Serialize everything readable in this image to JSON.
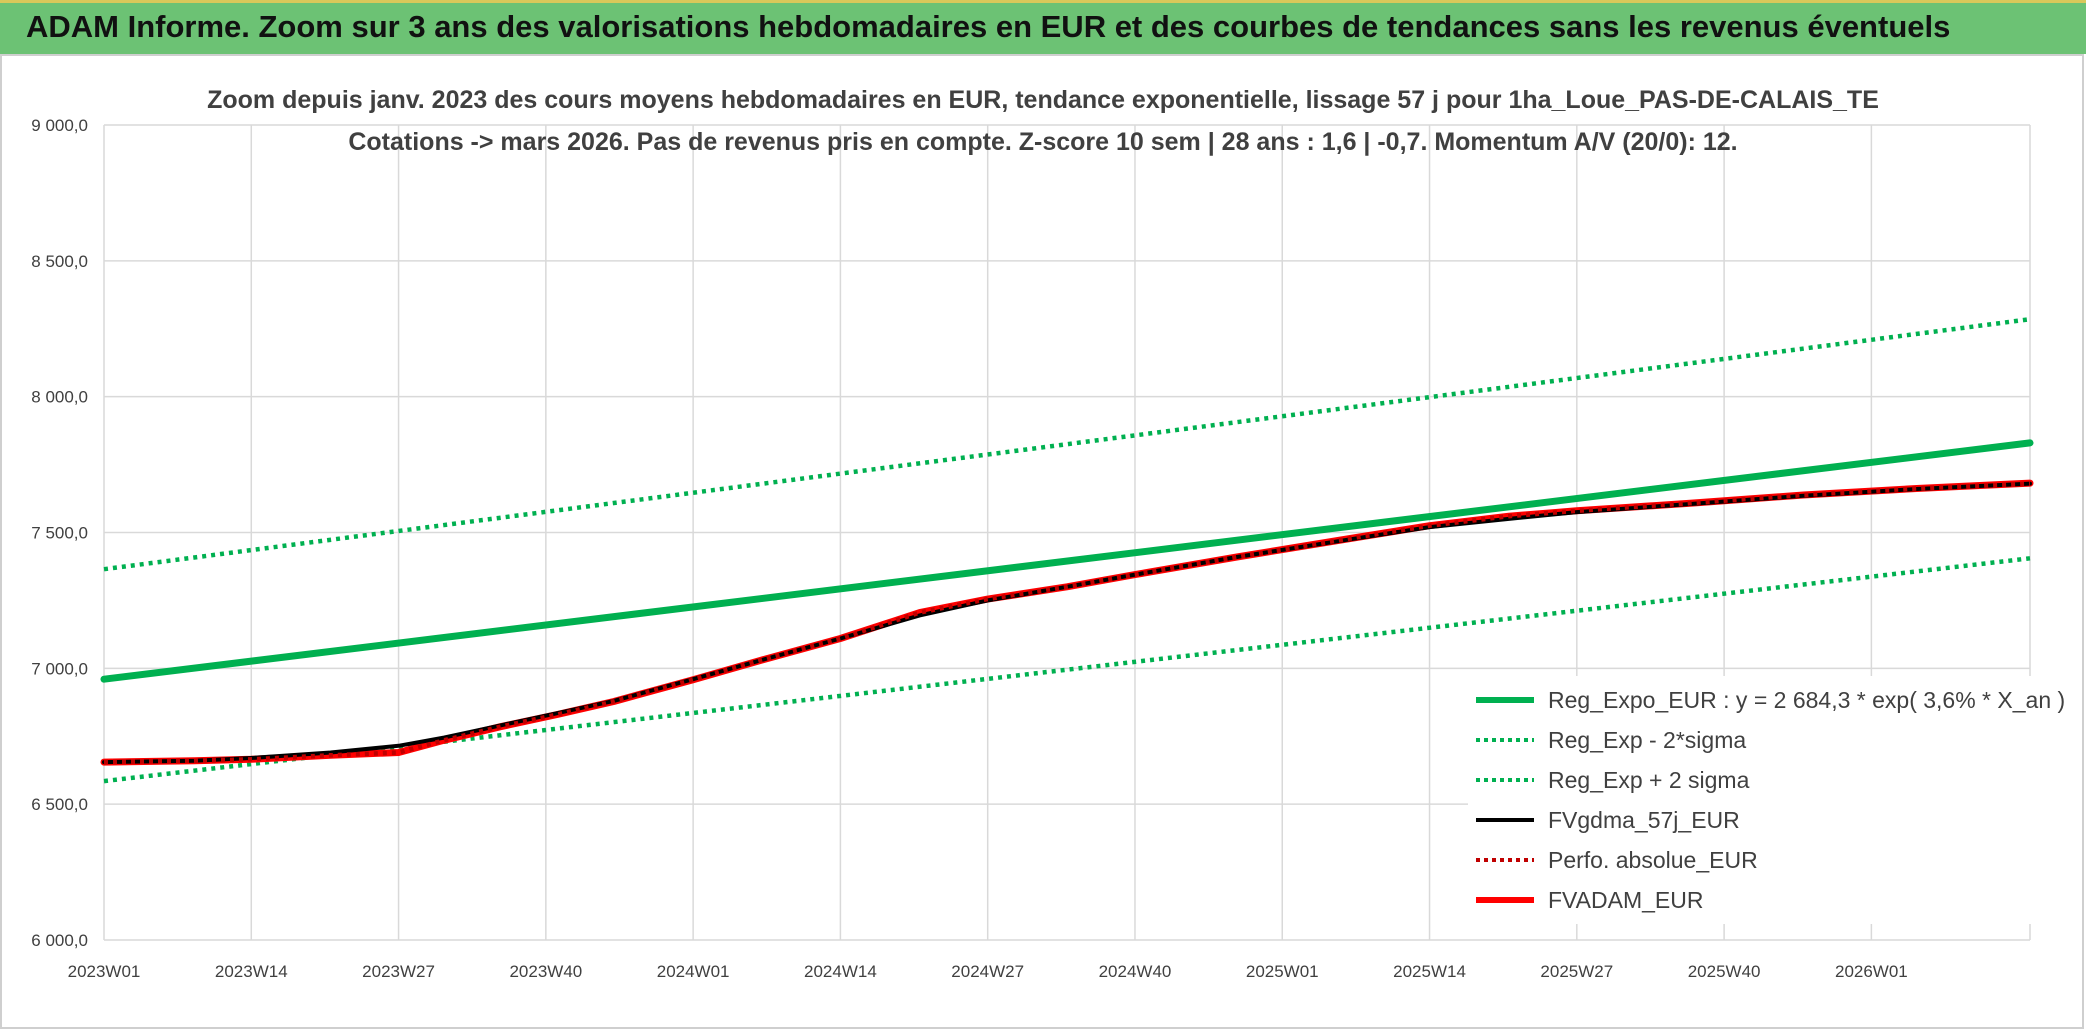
{
  "header": {
    "title": "ADAM Informe. Zoom sur 3 ans des valorisations hebdomadaires en EUR et des courbes de tendances sans les revenus éventuels"
  },
  "chart_data": {
    "type": "line",
    "title": "Zoom depuis janv. 2023 des cours moyens hebdomadaires en EUR, tendance exponentielle, lissage 57 j pour 1ha_Loue_PAS-DE-CALAIS_TE",
    "subtitle": "Cotations -> mars 2026. Pas de revenus pris en compte. Z-score 10 sem | 28 ans : 1,6 | -0,7. Momentum A/V (20/0): 12.",
    "xlabel": "",
    "ylabel": "",
    "ylim": [
      6000,
      9000
    ],
    "y_ticks": [
      "6 000,0",
      "6 500,0",
      "7 000,0",
      "7 500,0",
      "8 000,0",
      "8 500,0",
      "9 000,0"
    ],
    "x_ticks": [
      "2023W01",
      "2023W14",
      "2023W27",
      "2023W40",
      "2024W01",
      "2024W14",
      "2024W27",
      "2024W40",
      "2025W01",
      "2025W14",
      "2025W27",
      "2025W40",
      "2026W01"
    ],
    "x_range_weeks": [
      0,
      170
    ],
    "grid": true,
    "legend_position": "bottom-right",
    "series": [
      {
        "name": "Reg_Expo_EUR : y = 2 684,3 * exp( 3,6% *  X_an )",
        "color": "#00b050",
        "style": "solid-thick",
        "x": [
          0,
          170
        ],
        "values": [
          6960,
          7830
        ]
      },
      {
        "name": "Reg_Exp - 2*sigma",
        "color": "#00b050",
        "style": "dotted",
        "x": [
          0,
          170
        ],
        "values": [
          6585,
          7405
        ]
      },
      {
        "name": "Reg_Exp + 2 sigma",
        "color": "#00b050",
        "style": "dotted",
        "x": [
          0,
          170
        ],
        "values": [
          7365,
          8285
        ]
      },
      {
        "name": "FVgdma_57j_EUR",
        "color": "#000000",
        "style": "solid",
        "x": [
          0,
          8,
          13,
          20,
          26,
          30,
          35,
          40,
          45,
          52,
          58,
          65,
          72,
          78,
          85,
          91,
          100,
          110,
          117,
          124,
          130,
          140,
          150,
          160,
          170
        ],
        "values": [
          6655,
          6660,
          6670,
          6690,
          6715,
          6745,
          6790,
          6835,
          6880,
          6960,
          7030,
          7110,
          7195,
          7250,
          7300,
          7345,
          7410,
          7475,
          7520,
          7550,
          7575,
          7605,
          7635,
          7660,
          7680
        ]
      },
      {
        "name": "Perfo. absolue_EUR",
        "color": "#c00000",
        "style": "dotted",
        "x": [
          0,
          8,
          13,
          20,
          26,
          30,
          35,
          40,
          45,
          52,
          58,
          65,
          72,
          78,
          85,
          91,
          100,
          110,
          117,
          124,
          130,
          140,
          150,
          160,
          170
        ],
        "values": [
          6655,
          6660,
          6665,
          6680,
          6690,
          6735,
          6785,
          6830,
          6878,
          6958,
          7030,
          7110,
          7205,
          7255,
          7300,
          7345,
          7410,
          7478,
          7525,
          7560,
          7580,
          7608,
          7638,
          7662,
          7680
        ]
      },
      {
        "name": "FVADAM_EUR",
        "color": "#ff0000",
        "style": "solid-thick",
        "x": [
          0,
          8,
          13,
          20,
          26,
          30,
          35,
          40,
          45,
          52,
          58,
          65,
          72,
          78,
          85,
          91,
          100,
          110,
          117,
          124,
          130,
          140,
          150,
          160,
          170
        ],
        "values": [
          6655,
          6660,
          6665,
          6680,
          6690,
          6735,
          6785,
          6830,
          6878,
          6958,
          7030,
          7110,
          7205,
          7255,
          7300,
          7345,
          7410,
          7478,
          7525,
          7560,
          7580,
          7608,
          7638,
          7662,
          7682
        ]
      }
    ]
  }
}
